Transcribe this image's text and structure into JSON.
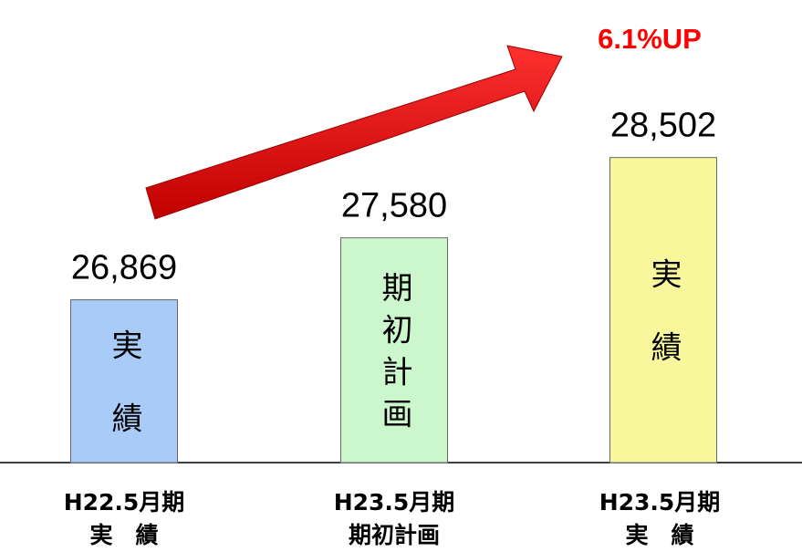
{
  "chart_data": {
    "type": "bar",
    "categories": [
      [
        "H22.5月期",
        "実　績"
      ],
      [
        "H23.5月期",
        "期初計画"
      ],
      [
        "H23.5月期",
        "実　績"
      ]
    ],
    "values": [
      26869,
      27580,
      28502
    ],
    "value_labels": [
      "26,869",
      "27,580",
      "28,502"
    ],
    "inner_labels": [
      "実績",
      "期初計画",
      "実績"
    ],
    "colors": [
      "#a9cbf7",
      "#ccf7cc",
      "#f9f79c"
    ],
    "ylim": [
      25000,
      30300
    ],
    "annotation": "6.1%UP"
  }
}
